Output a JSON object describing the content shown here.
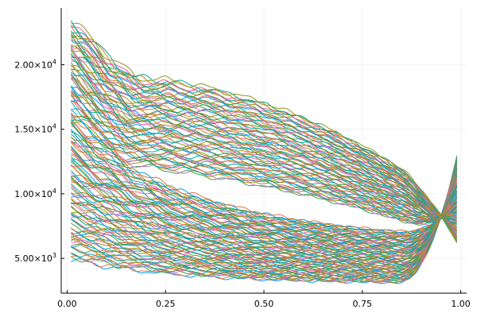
{
  "chart_data": {
    "type": "line",
    "title": "",
    "xlabel": "",
    "ylabel": "",
    "xlim": [
      -0.015,
      1.015
    ],
    "ylim": [
      2300,
      24400
    ],
    "grid": true,
    "legend": "none",
    "x_ticks": [
      {
        "value": 0.0,
        "label": "0.00"
      },
      {
        "value": 0.25,
        "label": "0.25"
      },
      {
        "value": 0.5,
        "label": "0.50"
      },
      {
        "value": 0.75,
        "label": "0.75"
      },
      {
        "value": 1.0,
        "label": "1.00"
      }
    ],
    "y_ticks": [
      {
        "value": 5000,
        "mantissa": "5.00×10",
        "exp": "3"
      },
      {
        "value": 10000,
        "mantissa": "1.00×10",
        "exp": "4"
      },
      {
        "value": 15000,
        "mantissa": "1.50×10",
        "exp": "4"
      },
      {
        "value": 20000,
        "mantissa": "2.00×10",
        "exp": "4"
      }
    ],
    "x_range": [
      0.01,
      0.99
    ],
    "series_count": 150,
    "series_start_range": [
      4900,
      23500
    ],
    "series_end_range": [
      5800,
      12900
    ],
    "series_min_range": [
      3000,
      9000
    ],
    "colors": [
      "#009AFA",
      "#E36F47",
      "#3EA44E",
      "#C371D2",
      "#AC8E18",
      "#00AAAE",
      "#ED5E93",
      "#C68225",
      "#00A98D",
      "#8E971D"
    ]
  }
}
